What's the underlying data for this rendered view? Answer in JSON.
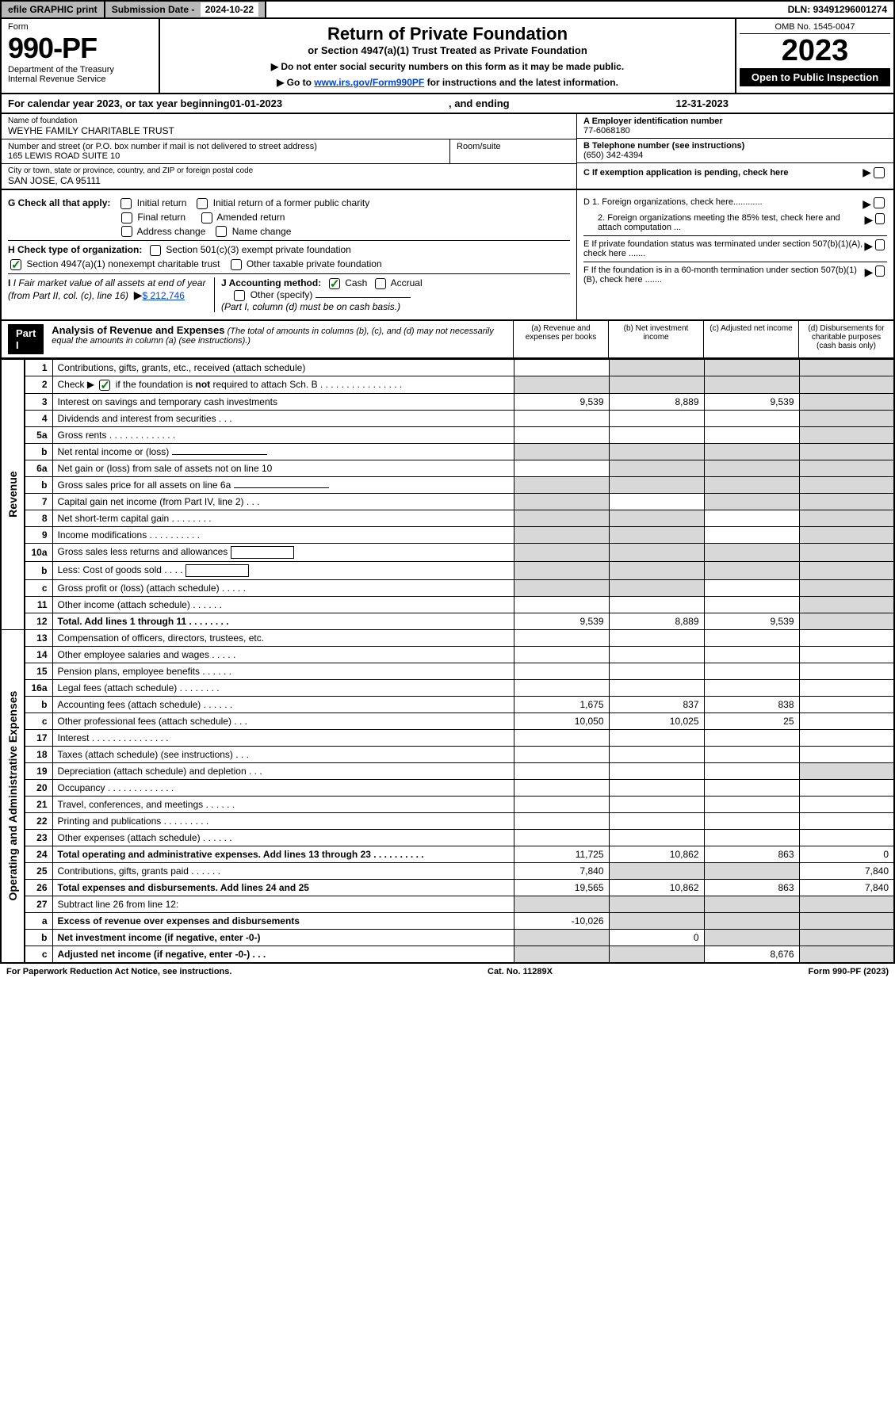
{
  "top": {
    "efile": "efile GRAPHIC print",
    "subdate_lbl": "Submission Date - ",
    "subdate": "2024-10-22",
    "dln_lbl": "DLN: ",
    "dln": "93491296001274"
  },
  "header": {
    "form_lbl": "Form",
    "form_num": "990-PF",
    "dept": "Department of the Treasury",
    "irs": "Internal Revenue Service",
    "title": "Return of Private Foundation",
    "subtitle": "or Section 4947(a)(1) Trust Treated as Private Foundation",
    "instr1": "▶ Do not enter social security numbers on this form as it may be made public.",
    "instr2": "▶ Go to ",
    "instr_link": "www.irs.gov/Form990PF",
    "instr3": " for instructions and the latest information.",
    "omb": "OMB No. 1545-0047",
    "year": "2023",
    "inspect": "Open to Public Inspection"
  },
  "cal": {
    "prefix": "For calendar year 2023, or tax year beginning ",
    "begin": "01-01-2023",
    "mid": ", and ending ",
    "end": "12-31-2023"
  },
  "entity": {
    "name_lbl": "Name of foundation",
    "name": "WEYHE FAMILY CHARITABLE TRUST",
    "addr_lbl": "Number and street (or P.O. box number if mail is not delivered to street address)",
    "addr": "165 LEWIS ROAD SUITE 10",
    "room_lbl": "Room/suite",
    "city_lbl": "City or town, state or province, country, and ZIP or foreign postal code",
    "city": "SAN JOSE, CA  95111",
    "ein_lbl": "A Employer identification number",
    "ein": "77-6068180",
    "tel_lbl": "B Telephone number (see instructions)",
    "tel": "(650) 342-4394",
    "c_lbl": "C If exemption application is pending, check here"
  },
  "checks": {
    "g_lbl": "G Check all that apply:",
    "g1": "Initial return",
    "g2": "Initial return of a former public charity",
    "g3": "Final return",
    "g4": "Amended return",
    "g5": "Address change",
    "g6": "Name change",
    "h_lbl": "H Check type of organization:",
    "h1": "Section 501(c)(3) exempt private foundation",
    "h2": "Section 4947(a)(1) nonexempt charitable trust",
    "h3": "Other taxable private foundation",
    "i_lbl": "I Fair market value of all assets at end of year (from Part II, col. (c), line 16)",
    "i_val": "$  212,746",
    "j_lbl": "J Accounting method:",
    "j1": "Cash",
    "j2": "Accrual",
    "j3": "Other (specify)",
    "j_note": "(Part I, column (d) must be on cash basis.)",
    "d1": "D 1. Foreign organizations, check here............",
    "d2": "2. Foreign organizations meeting the 85% test, check here and attach computation ...",
    "e_lbl": "E  If private foundation status was terminated under section 507(b)(1)(A), check here .......",
    "f_lbl": "F  If the foundation is in a 60-month termination under section 507(b)(1)(B), check here ......."
  },
  "part1": {
    "label": "Part I",
    "title": "Analysis of Revenue and Expenses",
    "note": " (The total of amounts in columns (b), (c), and (d) may not necessarily equal the amounts in column (a) (see instructions).)",
    "col_a": "(a)   Revenue and expenses per books",
    "col_b": "(b)   Net investment income",
    "col_c": "(c)   Adjusted net income",
    "col_d": "(d)  Disbursements for charitable purposes (cash basis only)"
  },
  "side_rev": "Revenue",
  "side_exp": "Operating and Administrative Expenses",
  "rows": [
    {
      "n": "1",
      "d": "Contributions, gifts, grants, etc., received (attach schedule)",
      "a": "",
      "b": "grey",
      "c": "grey",
      "dd": "grey"
    },
    {
      "n": "2",
      "d": "Check ▶ ☑ if the foundation is not required to attach Sch. B    .  .  .  .  .  .  .  .  .  .  .  .  .  .  .  .",
      "a": "grey",
      "b": "grey",
      "c": "grey",
      "dd": "grey",
      "bold_not": true
    },
    {
      "n": "3",
      "d": "Interest on savings and temporary cash investments",
      "a": "9,539",
      "b": "8,889",
      "c": "9,539",
      "dd": "grey"
    },
    {
      "n": "4",
      "d": "Dividends and interest from securities   .  .  .",
      "a": "",
      "b": "",
      "c": "",
      "dd": "grey"
    },
    {
      "n": "5a",
      "d": "Gross rents   .  .  .  .  .  .  .  .  .  .  .  .  .",
      "a": "",
      "b": "",
      "c": "",
      "dd": "grey"
    },
    {
      "n": "b",
      "d": "Net rental income or (loss)  ",
      "a": "grey",
      "b": "grey",
      "c": "grey",
      "dd": "grey",
      "under": true
    },
    {
      "n": "6a",
      "d": "Net gain or (loss) from sale of assets not on line 10",
      "a": "",
      "b": "grey",
      "c": "grey",
      "dd": "grey"
    },
    {
      "n": "b",
      "d": "Gross sales price for all assets on line 6a",
      "a": "grey",
      "b": "grey",
      "c": "grey",
      "dd": "grey",
      "under": true
    },
    {
      "n": "7",
      "d": "Capital gain net income (from Part IV, line 2)   .  .  .",
      "a": "grey",
      "b": "",
      "c": "grey",
      "dd": "grey"
    },
    {
      "n": "8",
      "d": "Net short-term capital gain   .  .  .  .  .  .  .  .",
      "a": "grey",
      "b": "grey",
      "c": "",
      "dd": "grey"
    },
    {
      "n": "9",
      "d": "Income modifications   .  .  .  .  .  .  .  .  .  .",
      "a": "grey",
      "b": "grey",
      "c": "",
      "dd": "grey"
    },
    {
      "n": "10a",
      "d": "Gross sales less returns and allowances",
      "a": "grey",
      "b": "grey",
      "c": "grey",
      "dd": "grey",
      "box": true
    },
    {
      "n": "b",
      "d": "Less: Cost of goods sold   .  .  .  .",
      "a": "grey",
      "b": "grey",
      "c": "grey",
      "dd": "grey",
      "box": true
    },
    {
      "n": "c",
      "d": "Gross profit or (loss) (attach schedule)   .  .  .  .  .",
      "a": "grey",
      "b": "grey",
      "c": "",
      "dd": "grey"
    },
    {
      "n": "11",
      "d": "Other income (attach schedule)   .  .  .  .  .  .",
      "a": "",
      "b": "",
      "c": "",
      "dd": "grey"
    },
    {
      "n": "12",
      "d": "Total. Add lines 1 through 11   .  .  .  .  .  .  .  .",
      "a": "9,539",
      "b": "8,889",
      "c": "9,539",
      "dd": "grey",
      "bold": true
    },
    {
      "n": "13",
      "d": "Compensation of officers, directors, trustees, etc.",
      "a": "",
      "b": "",
      "c": "",
      "dd": ""
    },
    {
      "n": "14",
      "d": "Other employee salaries and wages   .  .  .  .  .",
      "a": "",
      "b": "",
      "c": "",
      "dd": ""
    },
    {
      "n": "15",
      "d": "Pension plans, employee benefits   .  .  .  .  .  .",
      "a": "",
      "b": "",
      "c": "",
      "dd": ""
    },
    {
      "n": "16a",
      "d": "Legal fees (attach schedule)   .  .  .  .  .  .  .  .",
      "a": "",
      "b": "",
      "c": "",
      "dd": ""
    },
    {
      "n": "b",
      "d": "Accounting fees (attach schedule)   .  .  .  .  .  .",
      "a": "1,675",
      "b": "837",
      "c": "838",
      "dd": ""
    },
    {
      "n": "c",
      "d": "Other professional fees (attach schedule)   .  .  .",
      "a": "10,050",
      "b": "10,025",
      "c": "25",
      "dd": ""
    },
    {
      "n": "17",
      "d": "Interest   .  .  .  .  .  .  .  .  .  .  .  .  .  .  .",
      "a": "",
      "b": "",
      "c": "",
      "dd": ""
    },
    {
      "n": "18",
      "d": "Taxes (attach schedule) (see instructions)   .  .  .",
      "a": "",
      "b": "",
      "c": "",
      "dd": ""
    },
    {
      "n": "19",
      "d": "Depreciation (attach schedule) and depletion   .  .  .",
      "a": "",
      "b": "",
      "c": "",
      "dd": "grey"
    },
    {
      "n": "20",
      "d": "Occupancy   .  .  .  .  .  .  .  .  .  .  .  .  .",
      "a": "",
      "b": "",
      "c": "",
      "dd": ""
    },
    {
      "n": "21",
      "d": "Travel, conferences, and meetings   .  .  .  .  .  .",
      "a": "",
      "b": "",
      "c": "",
      "dd": ""
    },
    {
      "n": "22",
      "d": "Printing and publications   .  .  .  .  .  .  .  .  .",
      "a": "",
      "b": "",
      "c": "",
      "dd": ""
    },
    {
      "n": "23",
      "d": "Other expenses (attach schedule)   .  .  .  .  .  .",
      "a": "",
      "b": "",
      "c": "",
      "dd": ""
    },
    {
      "n": "24",
      "d": "Total operating and administrative expenses. Add lines 13 through 23   .  .  .  .  .  .  .  .  .  .",
      "a": "11,725",
      "b": "10,862",
      "c": "863",
      "dd": "0",
      "bold": true
    },
    {
      "n": "25",
      "d": "Contributions, gifts, grants paid   .  .  .  .  .  .",
      "a": "7,840",
      "b": "grey",
      "c": "grey",
      "dd": "7,840"
    },
    {
      "n": "26",
      "d": "Total expenses and disbursements. Add lines 24 and 25",
      "a": "19,565",
      "b": "10,862",
      "c": "863",
      "dd": "7,840",
      "bold": true
    },
    {
      "n": "27",
      "d": "Subtract line 26 from line 12:",
      "a": "grey",
      "b": "grey",
      "c": "grey",
      "dd": "grey"
    },
    {
      "n": "a",
      "d": "Excess of revenue over expenses and disbursements",
      "a": "-10,026",
      "b": "grey",
      "c": "grey",
      "dd": "grey",
      "bold": true
    },
    {
      "n": "b",
      "d": "Net investment income (if negative, enter -0-)",
      "a": "grey",
      "b": "0",
      "c": "grey",
      "dd": "grey",
      "bold": true
    },
    {
      "n": "c",
      "d": "Adjusted net income (if negative, enter -0-)   .  .  .",
      "a": "grey",
      "b": "grey",
      "c": "8,676",
      "dd": "grey",
      "bold": true
    }
  ],
  "footer": {
    "left": "For Paperwork Reduction Act Notice, see instructions.",
    "mid": "Cat. No. 11289X",
    "right": "Form 990-PF (2023)"
  }
}
